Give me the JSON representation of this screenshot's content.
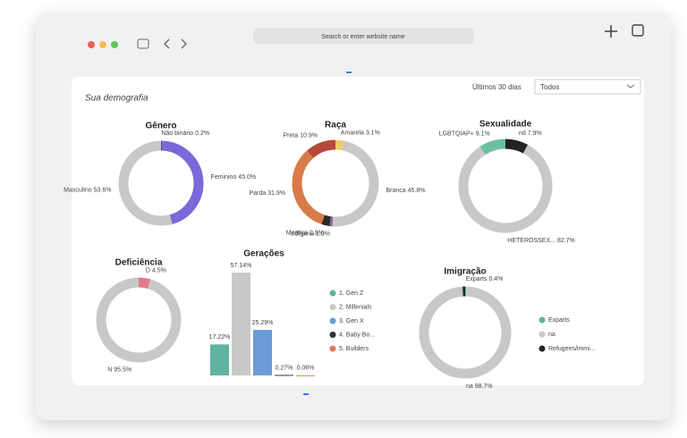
{
  "browser": {
    "url_placeholder": "Search or enter website name"
  },
  "header": {
    "title": "Sua demografia",
    "filter_label": "Últimos 30 dias",
    "filter_value": "Todos"
  },
  "chart_data": [
    {
      "type": "pie",
      "title": "Gênero",
      "categories": [
        "Não binário",
        "Feminino",
        "Masculino"
      ],
      "values": [
        0.2,
        45.0,
        53.6
      ],
      "value_labels": [
        "0.2%",
        "45.0%",
        "53.6%"
      ],
      "colors": [
        "#222222",
        "#7b68d9",
        "#c8c8c8"
      ]
    },
    {
      "type": "pie",
      "title": "Raça",
      "categories": [
        "Amarela",
        "Branca",
        "Indígena",
        "Mestiça",
        "Parda",
        "Preta"
      ],
      "values": [
        3.1,
        45.8,
        1.0,
        2.9,
        31.9,
        10.9
      ],
      "value_labels": [
        "3.1%",
        "45.8%",
        "1.0%",
        "2.9%",
        "31.9%",
        "10.9%"
      ],
      "colors": [
        "#f0c96a",
        "#c8c8c8",
        "#8a6a9a",
        "#2a2a2a",
        "#d97a4a",
        "#b54a3c"
      ]
    },
    {
      "type": "pie",
      "title": "Sexualidade",
      "categories": [
        "nd",
        "HETEROSSEX...",
        "LGBTQIAP+"
      ],
      "values": [
        7.9,
        82.7,
        9.1
      ],
      "value_labels": [
        "7.9%",
        "82.7%",
        "9.1%"
      ],
      "colors": [
        "#222222",
        "#c8c8c8",
        "#6cc0a0"
      ]
    },
    {
      "type": "pie",
      "title": "Deficiência",
      "categories": [
        "D",
        "N"
      ],
      "values": [
        4.5,
        95.5
      ],
      "value_labels": [
        "4.5%",
        "95.5%"
      ],
      "colors": [
        "#e07b8c",
        "#c8c8c8"
      ]
    },
    {
      "type": "bar",
      "title": "Gerações",
      "categories": [
        "1. Gen Z",
        "2. Millenials",
        "3. Gen X",
        "4. Baby Bo...",
        "5. Builders"
      ],
      "values": [
        17.22,
        57.14,
        25.29,
        0.27,
        0.06
      ],
      "value_labels": [
        "17.22%",
        "57.14%",
        "25.29%",
        "0.27%",
        "0.06%"
      ],
      "colors": [
        "#5fb3a0",
        "#c8c8c8",
        "#6b9bd8",
        "#333333",
        "#e07b5a"
      ],
      "legend": true
    },
    {
      "type": "pie",
      "title": "Imigração",
      "categories": [
        "Exparts",
        "na",
        "Refugees/immi..."
      ],
      "values": [
        0.4,
        98.7,
        0.9
      ],
      "value_labels": [
        "0.4%",
        "98.7%",
        null
      ],
      "colors": [
        "#5fb3a0",
        "#c8c8c8",
        "#222222"
      ],
      "legend": true
    }
  ]
}
